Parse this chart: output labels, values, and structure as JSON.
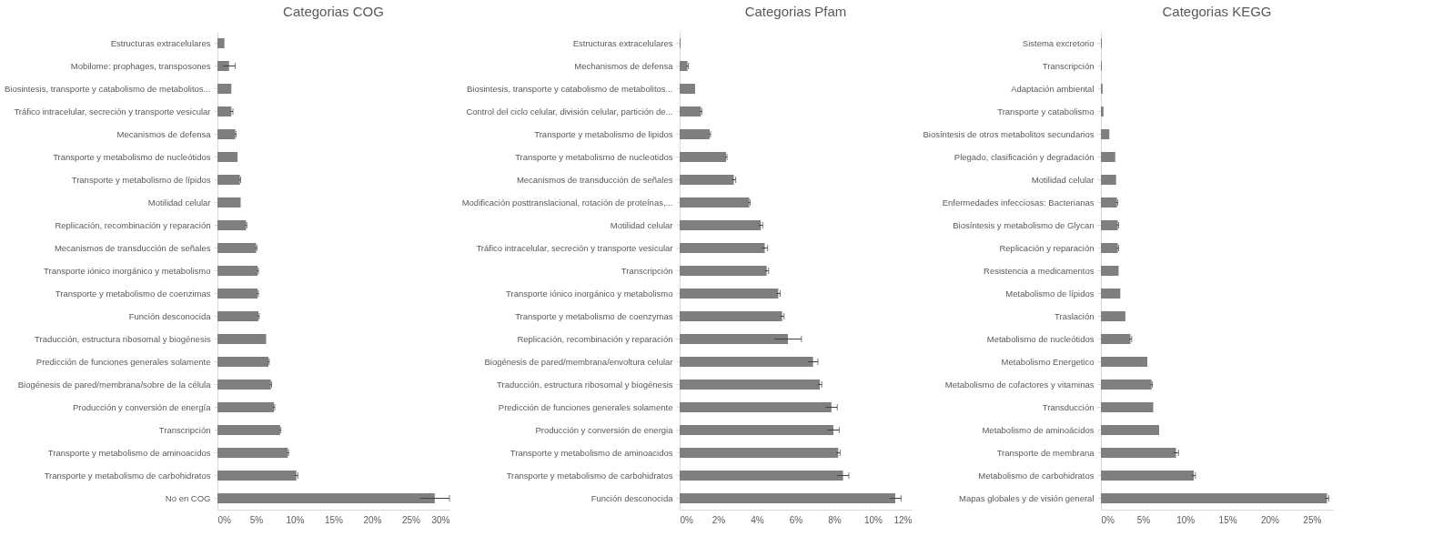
{
  "chart_data": [
    {
      "type": "bar",
      "orientation": "horizontal",
      "title": "Categorias COG",
      "categories": [
        "Estructuras extracelulares",
        "Mobilome: prophages, transposones",
        "Biosintesis, transporte y catabolismo de metabolitos...",
        "Tráfico intracelular, secreción y transporte vesicular",
        "Mecanismos de defensa",
        "Transporte y metabolismo de nucleótidos",
        "Transporte y metabolismo de lípidos",
        "Motilidad celular",
        "Replicación, recombinación y reparación",
        "Mecanismos de transducción de señales",
        "Transporte iónico inorgánico y metabolismo",
        "Transporte y metabolismo de coenzimas",
        "Función desconocida",
        "Traducción, estructura ribosomal y biogénesis",
        "Predicción de funciones generales solamente",
        "Biogénesis de pared/membrana/sobre de la célula",
        "Producción y conversión de energía",
        "Transcripción",
        "Transporte y metabolismo de aminoacidos",
        "Transporte y metabolismo de carbohidratos",
        "No en COG"
      ],
      "values": [
        0.9,
        1.5,
        1.8,
        1.8,
        2.3,
        2.6,
        2.9,
        3.0,
        3.7,
        5.0,
        5.2,
        5.2,
        5.3,
        6.3,
        6.6,
        6.9,
        7.3,
        8.1,
        9.1,
        10.2,
        28.1
      ],
      "errors": [
        null,
        0.8,
        null,
        0.2,
        0.1,
        null,
        0.1,
        null,
        0.1,
        0.1,
        0.1,
        0.1,
        0.1,
        null,
        0.1,
        0.1,
        0.1,
        0.1,
        0.1,
        0.2,
        1.9
      ],
      "color": "#7f7f7f",
      "xlim": [
        0,
        30
      ],
      "xticks": [
        {
          "value": 0,
          "label": "0%"
        },
        {
          "value": 5,
          "label": "5%"
        },
        {
          "value": 10,
          "label": "10%"
        },
        {
          "value": 15,
          "label": "15%"
        },
        {
          "value": 20,
          "label": "20%"
        },
        {
          "value": 25,
          "label": "25%"
        },
        {
          "value": 30,
          "label": "30%"
        }
      ]
    },
    {
      "type": "bar",
      "orientation": "horizontal",
      "title": "Categorias Pfam",
      "categories": [
        "Estructuras extracelulares",
        "Mechanismos de defensa",
        "Biosintesis, transporte y catabolismo de metabolitos...",
        "Control del ciclo celular, división celular, partición de...",
        "Transporte y metabolismo de lipidos",
        "Transporte y metabolismo de nucleotidos",
        "Mecanismos de transducción de señales",
        "Modificación posttranslacional, rotación de proteínas,...",
        "Motilidad celular",
        "Tráfico intracelular, secreción y transporte vesicular",
        "Transcripción",
        "Transporte iónico inorgánico y metabolismo",
        "Transporte y metabolismo de coenzymas",
        "Replicación, recombinación y reparación",
        "Biogénesis de pared/membrana/envoltura celular",
        "Traducción, estructura ribosomal y biogénesis",
        "Predicción de funciones generales solamente",
        "Producción y conversión de energia",
        "Transporte y metabolismo de aminoacidos",
        "Transporte y metabolismo de carbohidratos",
        "Función desconocida"
      ],
      "values": [
        0.05,
        0.4,
        0.8,
        1.1,
        1.55,
        2.4,
        2.8,
        3.6,
        4.2,
        4.4,
        4.5,
        5.1,
        5.3,
        5.6,
        6.9,
        7.25,
        7.85,
        7.95,
        8.2,
        8.45,
        11.15
      ],
      "errors": [
        null,
        0.05,
        null,
        0.05,
        0.05,
        0.05,
        0.1,
        0.05,
        0.1,
        0.15,
        0.1,
        0.1,
        0.1,
        0.7,
        0.25,
        0.1,
        0.3,
        0.3,
        0.1,
        0.3,
        0.3
      ],
      "color": "#7f7f7f",
      "xlim": [
        0,
        12
      ],
      "xticks": [
        {
          "value": 0,
          "label": "0%"
        },
        {
          "value": 2,
          "label": "2%"
        },
        {
          "value": 4,
          "label": "4%"
        },
        {
          "value": 6,
          "label": "6%"
        },
        {
          "value": 8,
          "label": "8%"
        },
        {
          "value": 10,
          "label": "10%"
        },
        {
          "value": 12,
          "label": "12%"
        }
      ]
    },
    {
      "type": "bar",
      "orientation": "horizontal",
      "title": "Categorias KEGG",
      "categories": [
        "Sistema excretorio",
        "Transcripción",
        "Adaptación ambiental",
        "Transporte y catabolismo",
        "Biosíntesis de otros metabolitos secundarios",
        "Plegado, clasificación y degradación",
        "Motilidad celular",
        "Enfermedades infecciosas: Bacterianas",
        "Biosíntesis y metabolismo de Glycan",
        "Replicación y reparación",
        "Resistencia a medicamentos",
        "Metabolismo de lípidos",
        "Traslación",
        "Metabolismo de nucleótidos",
        "Metabolismo Energetico",
        "Metabolismo de cofactores y vitaminas",
        "Transducción",
        "Metabolismo de aminoácidos",
        "Transporte de membrana",
        "Metabolismo de carbohidratos",
        "Mapas globales y de visión general"
      ],
      "values": [
        0.1,
        0.1,
        0.2,
        0.3,
        1.0,
        1.7,
        1.8,
        1.9,
        2.0,
        2.0,
        2.1,
        2.3,
        2.9,
        3.5,
        5.5,
        6.0,
        6.2,
        6.9,
        8.9,
        11.0,
        26.8
      ],
      "errors": [
        null,
        null,
        null,
        null,
        null,
        null,
        null,
        0.1,
        0.1,
        0.1,
        null,
        null,
        null,
        0.15,
        null,
        0.1,
        null,
        null,
        0.3,
        0.2,
        0.2
      ],
      "color": "#7f7f7f",
      "xlim": [
        0,
        27.5
      ],
      "xticks": [
        {
          "value": 0,
          "label": "0%"
        },
        {
          "value": 5,
          "label": "5%"
        },
        {
          "value": 10,
          "label": "10%"
        },
        {
          "value": 15,
          "label": "15%"
        },
        {
          "value": 20,
          "label": "20%"
        },
        {
          "value": 25,
          "label": "25%"
        }
      ]
    }
  ]
}
